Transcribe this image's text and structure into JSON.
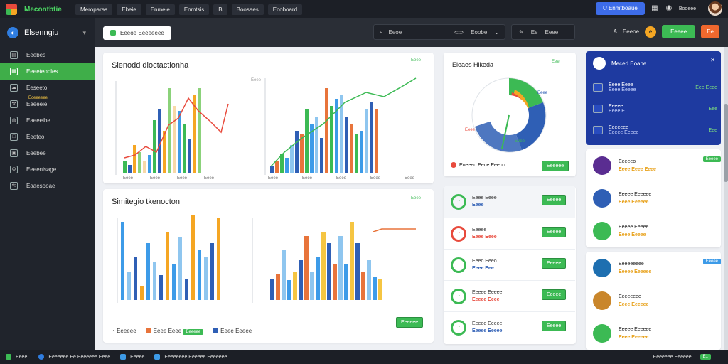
{
  "topbar": {
    "brand": "Mecontbtie",
    "menu": [
      "Meroparas",
      "Ebeie",
      "Enmeie",
      "Enmtsis",
      "B",
      "Boosaes",
      "Ecoboard"
    ],
    "right_button": "Enmtboaue",
    "right_label": "Booeee"
  },
  "sidebar": {
    "title": "Elsenngiu",
    "items": [
      {
        "label": "Eeebes",
        "icon": "grid-icon",
        "active": false
      },
      {
        "label": "Eeeeteobles",
        "icon": "table-icon",
        "active": true
      },
      {
        "label": "Eeseeto",
        "icon": "cloud-icon",
        "active": false
      },
      {
        "label": "Eaeeeie",
        "icon": "wrench-icon",
        "active": false,
        "badge": "Eceeeeee"
      },
      {
        "label": "Eaeeeibe",
        "icon": "globe-icon",
        "active": false
      },
      {
        "label": "Eeeteo",
        "icon": "square-icon",
        "active": false
      },
      {
        "label": "Eeebee",
        "icon": "file-icon",
        "active": false
      },
      {
        "label": "Eeeenisage",
        "icon": "settings-icon",
        "active": false
      },
      {
        "label": "Eaaesooae",
        "icon": "share-icon",
        "active": false
      }
    ]
  },
  "toolbar": {
    "tab": "Eeeoe Eeeeeeee",
    "search_placeholder": "Eeoe",
    "search_a": "Eoobe",
    "search_b": "Eeee",
    "tool_x": "Ee",
    "tool_y": "Eeee",
    "tool_z": "Eiee",
    "right_a": "A",
    "right_b": "Eeeoe",
    "orange_dot": "e",
    "green_button": "Eeeee",
    "orange_button": "Ee"
  },
  "chart1": {
    "title": "Sienodd dioctactlonha",
    "tag": "Eeee",
    "left_ticks": [
      "Eeee",
      "Eeee",
      "Eeee",
      "Eeee"
    ],
    "right_ticks": [
      "Eeee",
      "Eeee",
      "Eeee",
      "Eeee",
      "Eeee"
    ],
    "y_label": "Eeee"
  },
  "chart2": {
    "title": "Simitegio tkenocton",
    "tag": "Eeee",
    "legend_a": "Eeeeee",
    "legend_b": "Eeee Eeee",
    "legend_b_tag": "Eeeeee",
    "legend_c": "Eeee Eeeee",
    "btn": "Eeeeee"
  },
  "pie_card": {
    "title": "Eleaes Hikeda",
    "tag": "Eee",
    "inner_a": "Eeee",
    "inner_b": "Eeee",
    "inner_c": "Eeee",
    "footer": "Eoeeeo Eeoe Eeeoo",
    "btn": "Eeeeee"
  },
  "mid_list": [
    {
      "a": "Eeee Eeee",
      "b": "Eeee",
      "btn": "Eeeee",
      "color": "#3cba54"
    },
    {
      "a": "Eeeee",
      "b": "Eeee Eeee",
      "btn": "Eeeee",
      "color": "#e84a3c"
    },
    {
      "a": "Eeeo Eeeo",
      "b": "Eeee Eee",
      "btn": "Eeeee",
      "color": "#3cba54"
    },
    {
      "a": "Eeeee Eeeee",
      "b": "Eeeee Eeee",
      "btn": "Eeeee",
      "color": "#3cba54"
    },
    {
      "a": "Eeeee Eeeee",
      "b": "Eeeee Eeeee",
      "btn": "Eeeee",
      "color": "#3cba54"
    }
  ],
  "navy_card": {
    "title": "Meced Eoane",
    "rows": [
      {
        "a": "Eeee Eeee",
        "b": "Eeee Eeeee",
        "v": "Eee Eeee"
      },
      {
        "a": "Eeeee",
        "b": "Eeee E",
        "v": "Eee"
      },
      {
        "a": "Eeeeeee",
        "b": "Eeeee Eeeee",
        "v": "Eee"
      }
    ]
  },
  "people": [
    {
      "a": "Eeeeeo",
      "b": "Eeee Eeee Eeee",
      "tag": "Eeeee"
    },
    {
      "a": "Eeeee Eeeeee",
      "b": "Eeee Eeeeee",
      "tag": ""
    },
    {
      "a": "Eeeee Eeeee",
      "b": "Eeee Eeeee",
      "tag": ""
    },
    {
      "a": "Eeeeeeeee",
      "b": "Eeeee Eeeeee",
      "tag": "Eeeee"
    },
    {
      "a": "Eeeeeeee",
      "b": "Eeee Eeeeee",
      "tag": ""
    },
    {
      "a": "Eeeee Eeeeee",
      "b": "Eeee Eeeeee",
      "tag": ""
    }
  ],
  "statusbar": {
    "a": "Eeee",
    "b": "Eeeeeee Ee Eeeeeee Eeee",
    "c": "Eeeee",
    "d": "Eeeeeeee Eeeeee Eeeeeee",
    "right": "Eeeeeee Eeeeee",
    "right_tag": "E1"
  },
  "colors": {
    "green": "#3cba54",
    "blue": "#3d6ce8",
    "navy": "#1e3aa0",
    "orange": "#f0682e",
    "red": "#e84a3c",
    "yellow": "#f5a623"
  }
}
